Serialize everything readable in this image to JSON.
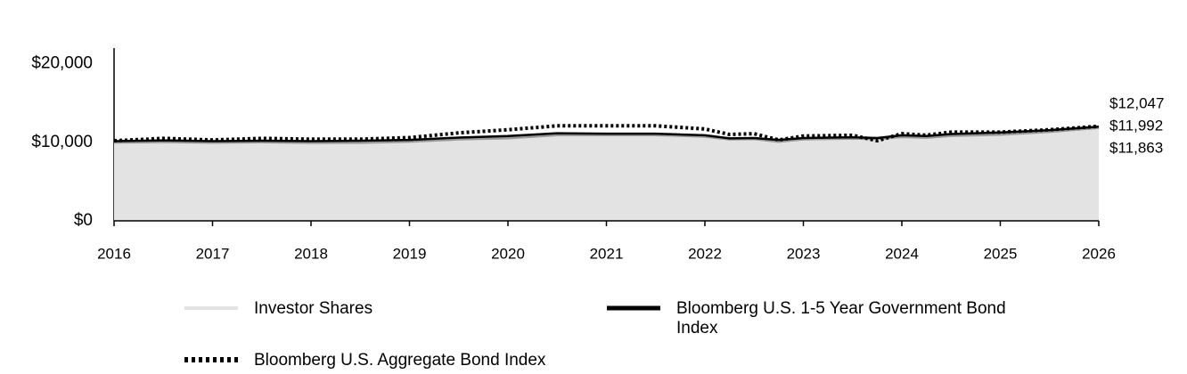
{
  "chart_data": {
    "type": "line",
    "xlim": [
      2016,
      2026
    ],
    "xticks": [
      2016,
      2017,
      2018,
      2019,
      2020,
      2021,
      2022,
      2023,
      2024,
      2025,
      2026
    ],
    "ylim": [
      0,
      22000
    ],
    "yticks": [
      {
        "value": 0,
        "label": "$0"
      },
      {
        "value": 10000,
        "label": "$10,000"
      },
      {
        "value": 20000,
        "label": "$20,000"
      }
    ],
    "x": [
      2016,
      2016.5,
      2017,
      2017.5,
      2018,
      2018.5,
      2019,
      2019.5,
      2020,
      2020.5,
      2021,
      2021.5,
      2022,
      2022.25,
      2022.5,
      2022.75,
      2023,
      2023.5,
      2023.75,
      2024,
      2024.25,
      2024.5,
      2025,
      2025.5,
      2026
    ],
    "series": [
      {
        "name": "Investor Shares",
        "color": "#e3e3e3",
        "line_color": "#999999",
        "style": "area",
        "values": [
          10000,
          10050,
          9980,
          10030,
          9950,
          9970,
          10100,
          10400,
          10550,
          10950,
          10950,
          10950,
          10750,
          10400,
          10450,
          10100,
          10400,
          10500,
          10450,
          10700,
          10600,
          10850,
          11000,
          11350,
          11863
        ],
        "value_labels": [
          null,
          null,
          null,
          null,
          null,
          null,
          null,
          null,
          null,
          null,
          null,
          null,
          null,
          null,
          null,
          null,
          null,
          null,
          null,
          null,
          null,
          null,
          null,
          null,
          "$11,863"
        ]
      },
      {
        "name": "Bloomberg U.S. 1-5 Year Government Bond Index",
        "color": "#000000",
        "style": "solid",
        "values": [
          10150,
          10250,
          10150,
          10200,
          10150,
          10200,
          10300,
          10600,
          10800,
          11150,
          11100,
          11100,
          10900,
          10500,
          10550,
          10300,
          10550,
          10650,
          10550,
          10900,
          10800,
          11050,
          11250,
          11550,
          11992
        ],
        "value_labels": [
          null,
          null,
          null,
          null,
          null,
          null,
          null,
          null,
          null,
          null,
          null,
          null,
          null,
          null,
          null,
          null,
          null,
          null,
          null,
          null,
          null,
          null,
          null,
          null,
          "$11,992"
        ]
      },
      {
        "name": "Bloomberg U.S. Aggregate Bond Index",
        "color": "#000000",
        "style": "dotted",
        "values": [
          10200,
          10500,
          10300,
          10500,
          10400,
          10400,
          10600,
          11200,
          11600,
          12100,
          12100,
          12100,
          11700,
          11000,
          11100,
          10300,
          10800,
          10900,
          10200,
          11100,
          10900,
          11300,
          11300,
          11600,
          12047
        ],
        "value_labels": [
          null,
          null,
          null,
          null,
          null,
          null,
          null,
          null,
          null,
          null,
          null,
          null,
          null,
          null,
          null,
          null,
          null,
          null,
          null,
          null,
          null,
          null,
          null,
          null,
          "$12,047"
        ]
      }
    ]
  }
}
